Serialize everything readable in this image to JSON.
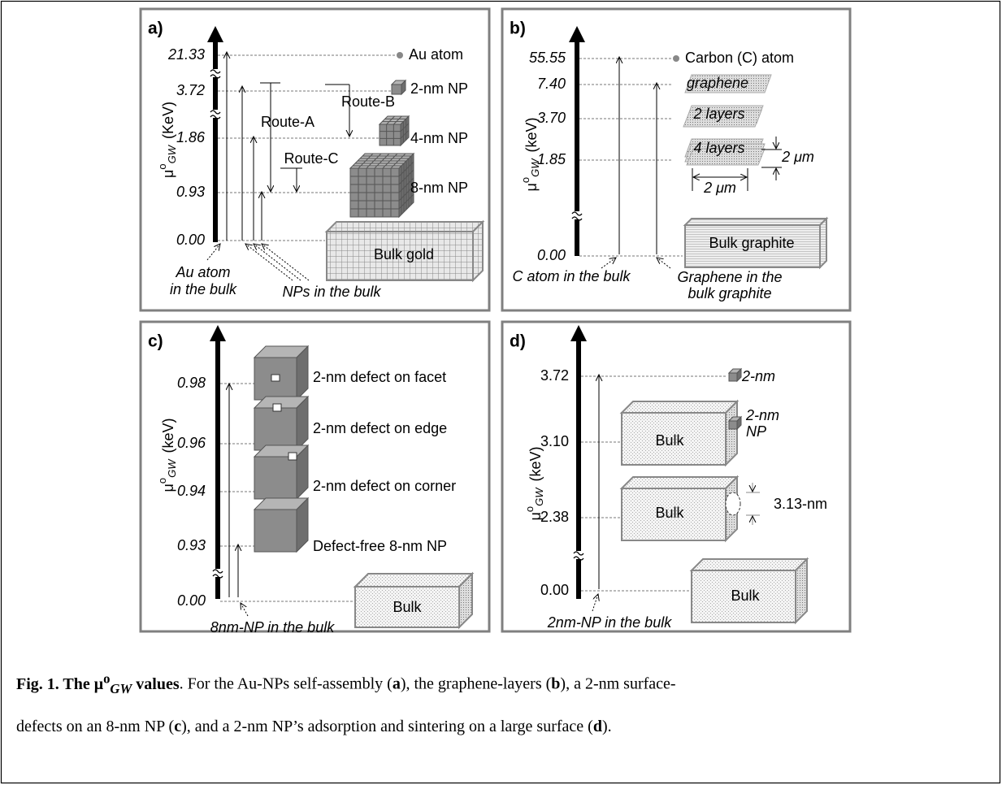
{
  "panels": {
    "a": {
      "label": "a)",
      "axis": {
        "mu": "μ",
        "sup": "o",
        "sub": "GW",
        "unit": "(KeV)"
      },
      "ticks": [
        "21.33",
        "3.72",
        "1.86",
        "0.93",
        "0.00"
      ],
      "states": [
        "Au atom",
        "2-nm NP",
        "4-nm NP",
        "8-nm NP",
        "Bulk gold"
      ],
      "routes": [
        "Route-A",
        "Route-B",
        "Route-C"
      ],
      "notes": [
        "Au atom",
        "in the bulk",
        "NPs in the bulk"
      ]
    },
    "b": {
      "label": "b)",
      "axis": {
        "mu": "μ",
        "sup": "o",
        "sub": "GW",
        "unit": "(keV)"
      },
      "ticks": [
        "55.55",
        "7.40",
        "3.70",
        "1.85",
        "0.00"
      ],
      "states": [
        "Carbon (C) atom",
        "graphene",
        "2 layers",
        "4 layers",
        "Bulk graphite"
      ],
      "dimensions": [
        "2 μm",
        "2 μm"
      ],
      "notes": [
        "C atom in the bulk",
        "Graphene in the",
        "bulk graphite"
      ]
    },
    "c": {
      "label": "c)",
      "axis": {
        "mu": "μ",
        "sup": "o",
        "sub": "GW",
        "unit": "(keV)"
      },
      "ticks": [
        "0.98",
        "0.96",
        "0.94",
        "0.93",
        "0.00"
      ],
      "states": [
        "2-nm defect on facet",
        "2-nm defect on edge",
        "2-nm defect on corner",
        "Defect-free 8-nm NP",
        "Bulk"
      ],
      "notes": [
        "8nm-NP in the bulk"
      ]
    },
    "d": {
      "label": "d)",
      "axis": {
        "mu": "μ",
        "sup": "o",
        "sub": "GW",
        "unit": "(keV)"
      },
      "ticks": [
        "3.72",
        "3.10",
        "2.38",
        "0.00"
      ],
      "states": [
        "2-nm",
        "Bulk",
        "2-nm",
        "NP",
        "Bulk",
        "3.13-nm",
        "Bulk"
      ],
      "notes": [
        "2nm-NP in the bulk"
      ]
    }
  },
  "caption": [
    "Fig. 1. The μ",
    "o",
    "GW",
    " values",
    ". For the Au-NPs self-assembly (",
    "a",
    "), the graphene-layers (",
    "b",
    "), a 2-nm surface-",
    "defects on an 8-nm NP (",
    "c",
    "), and a 2-nm NP’s adsorption and sintering on a large surface (",
    "d",
    ")."
  ]
}
